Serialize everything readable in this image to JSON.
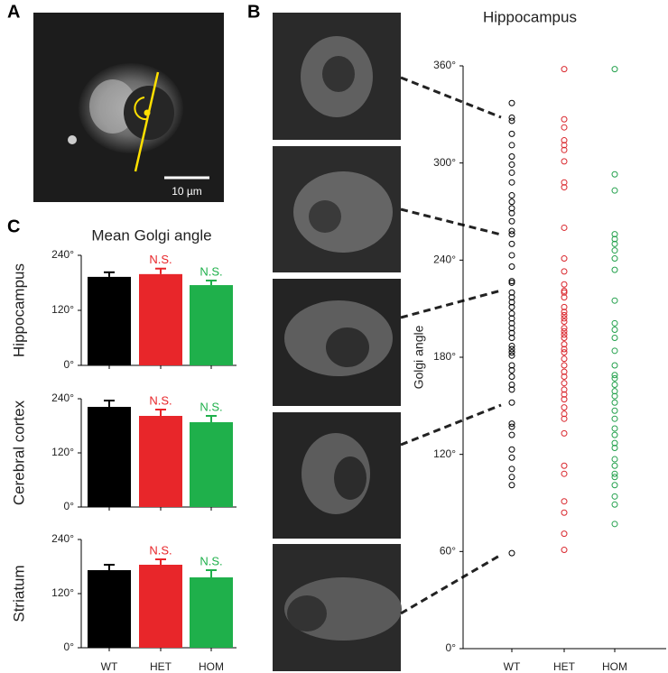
{
  "panels": {
    "a": "A",
    "b": "B",
    "c": "C"
  },
  "scale_bar": "10 µm",
  "chart_data": [
    {
      "type": "strip",
      "title": "Hippocampus",
      "y_label": "Golgi angle",
      "categories": [
        "WT",
        "HET",
        "HOM"
      ],
      "colors": [
        "#000000",
        "#d9262c",
        "#22a04b"
      ],
      "values": [
        [
          337,
          328,
          326,
          318,
          311,
          304,
          299,
          294,
          288,
          280,
          276,
          272,
          269,
          264,
          258,
          256,
          250,
          243,
          236,
          227,
          226,
          220,
          217,
          214,
          211,
          207,
          204,
          201,
          198,
          195,
          192,
          187,
          185,
          183,
          181,
          175,
          172,
          168,
          163,
          160,
          152,
          139,
          137,
          132,
          123,
          118,
          111,
          106,
          101,
          59
        ],
        [
          358,
          327,
          322,
          314,
          311,
          308,
          301,
          288,
          285,
          260,
          241,
          233,
          225,
          221,
          220,
          217,
          211,
          208,
          206,
          204,
          202,
          198,
          196,
          194,
          192,
          188,
          185,
          183,
          179,
          175,
          171,
          168,
          164,
          160,
          157,
          154,
          149,
          145,
          142,
          133,
          113,
          108,
          91,
          84,
          71,
          61
        ],
        [
          358,
          293,
          283,
          256,
          253,
          250,
          246,
          241,
          234,
          215,
          201,
          197,
          192,
          184,
          175,
          169,
          167,
          163,
          159,
          156,
          152,
          147,
          142,
          136,
          132,
          127,
          124,
          117,
          113,
          108,
          106,
          101,
          94,
          89,
          77
        ]
      ],
      "ylim": [
        0,
        360
      ],
      "yticks": [
        {
          "value": 0,
          "label": "0°"
        },
        {
          "value": 60,
          "label": "60°"
        },
        {
          "value": 120,
          "label": "120°"
        },
        {
          "value": 180,
          "label": "180°"
        },
        {
          "value": 240,
          "label": "240°"
        },
        {
          "value": 300,
          "label": "300°"
        },
        {
          "value": 360,
          "label": "360°"
        }
      ]
    },
    {
      "type": "bar",
      "title": "Mean Golgi angle",
      "y_label": "Hippocampus",
      "categories": [
        null,
        null,
        null
      ],
      "values": [
        193,
        199,
        175
      ],
      "errors": [
        10,
        12,
        10
      ],
      "annotations": [
        null,
        "N.S.",
        "N.S."
      ],
      "colors": [
        "#000000",
        "#e8262a",
        "#1fb04b"
      ],
      "ylim": [
        0,
        240
      ],
      "yticks": [
        {
          "value": 0,
          "label": "0°"
        },
        {
          "value": 120,
          "label": "120°"
        },
        {
          "value": 240,
          "label": "240°"
        }
      ]
    },
    {
      "type": "bar",
      "y_label": "Cerebral cortex",
      "categories": [
        null,
        null,
        null
      ],
      "values": [
        222,
        202,
        188
      ],
      "errors": [
        14,
        14,
        14
      ],
      "annotations": [
        null,
        "N.S.",
        "N.S."
      ],
      "colors": [
        "#000000",
        "#e8262a",
        "#1fb04b"
      ],
      "ylim": [
        0,
        240
      ],
      "yticks": [
        {
          "value": 0,
          "label": "0°"
        },
        {
          "value": 120,
          "label": "120°"
        },
        {
          "value": 240,
          "label": "240°"
        }
      ]
    },
    {
      "type": "bar",
      "y_label": "Striatum",
      "categories": [
        "WT",
        "HET",
        "HOM"
      ],
      "values": [
        172,
        184,
        156
      ],
      "errors": [
        12,
        12,
        16
      ],
      "annotations": [
        null,
        "N.S.",
        "N.S."
      ],
      "colors": [
        "#000000",
        "#e8262a",
        "#1fb04b"
      ],
      "ylim": [
        0,
        240
      ],
      "yticks": [
        {
          "value": 0,
          "label": "0°"
        },
        {
          "value": 120,
          "label": "120°"
        },
        {
          "value": 240,
          "label": "240°"
        }
      ]
    }
  ]
}
